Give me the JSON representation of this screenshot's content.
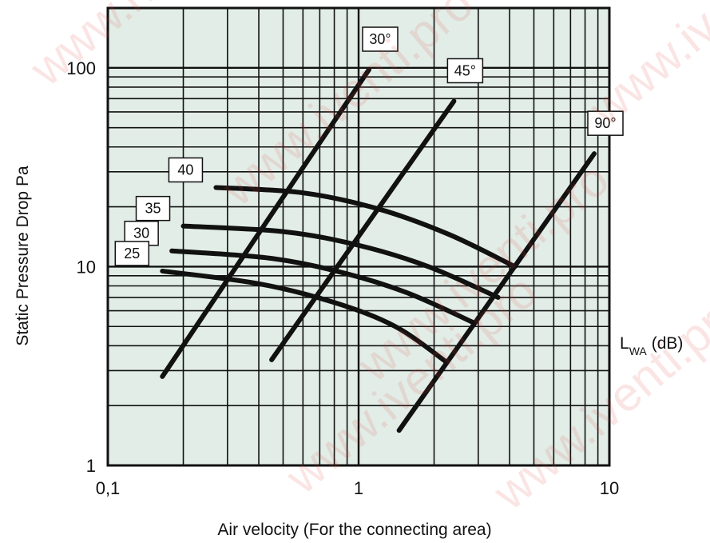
{
  "chart_data": {
    "type": "line",
    "xscale": "log",
    "yscale": "log",
    "xlim": [
      0.1,
      10
    ],
    "ylim": [
      1,
      200
    ],
    "xlabel": "Air velocity (For the connecting area)",
    "ylabel": "Static Pressure Drop Pa",
    "x_tick_labels": [
      "0,1",
      "1",
      "10"
    ],
    "y_tick_labels": [
      "1",
      "10",
      "100"
    ],
    "side_label": {
      "main": "L",
      "sub": "WA",
      "unit": "(dB)"
    },
    "grid": true,
    "background_color": "#e2ede7",
    "line_color": "#111111",
    "watermark": "www.iventi.pro",
    "angle_series": [
      {
        "name": "30°",
        "points": [
          [
            0.165,
            2.8
          ],
          [
            1.1,
            98
          ]
        ]
      },
      {
        "name": "45°",
        "points": [
          [
            0.45,
            3.4
          ],
          [
            2.4,
            68
          ]
        ]
      },
      {
        "name": "90°",
        "points": [
          [
            1.45,
            1.5
          ],
          [
            8.7,
            37
          ]
        ]
      }
    ],
    "sound_series": [
      {
        "name": "40",
        "points": [
          [
            0.27,
            25
          ],
          [
            0.6,
            23.5
          ],
          [
            1.2,
            19.5
          ],
          [
            2.3,
            14.5
          ],
          [
            4.2,
            10
          ]
        ]
      },
      {
        "name": "35",
        "points": [
          [
            0.2,
            16
          ],
          [
            0.5,
            15
          ],
          [
            1.0,
            12.8
          ],
          [
            1.9,
            10
          ],
          [
            3.6,
            7
          ]
        ]
      },
      {
        "name": "30",
        "points": [
          [
            0.18,
            12
          ],
          [
            0.45,
            11
          ],
          [
            0.9,
            9.2
          ],
          [
            1.6,
            7.3
          ],
          [
            2.9,
            5.2
          ]
        ]
      },
      {
        "name": "25",
        "points": [
          [
            0.165,
            9.5
          ],
          [
            0.4,
            8.2
          ],
          [
            0.8,
            6.6
          ],
          [
            1.4,
            5.0
          ],
          [
            2.25,
            3.3
          ]
        ]
      }
    ]
  }
}
